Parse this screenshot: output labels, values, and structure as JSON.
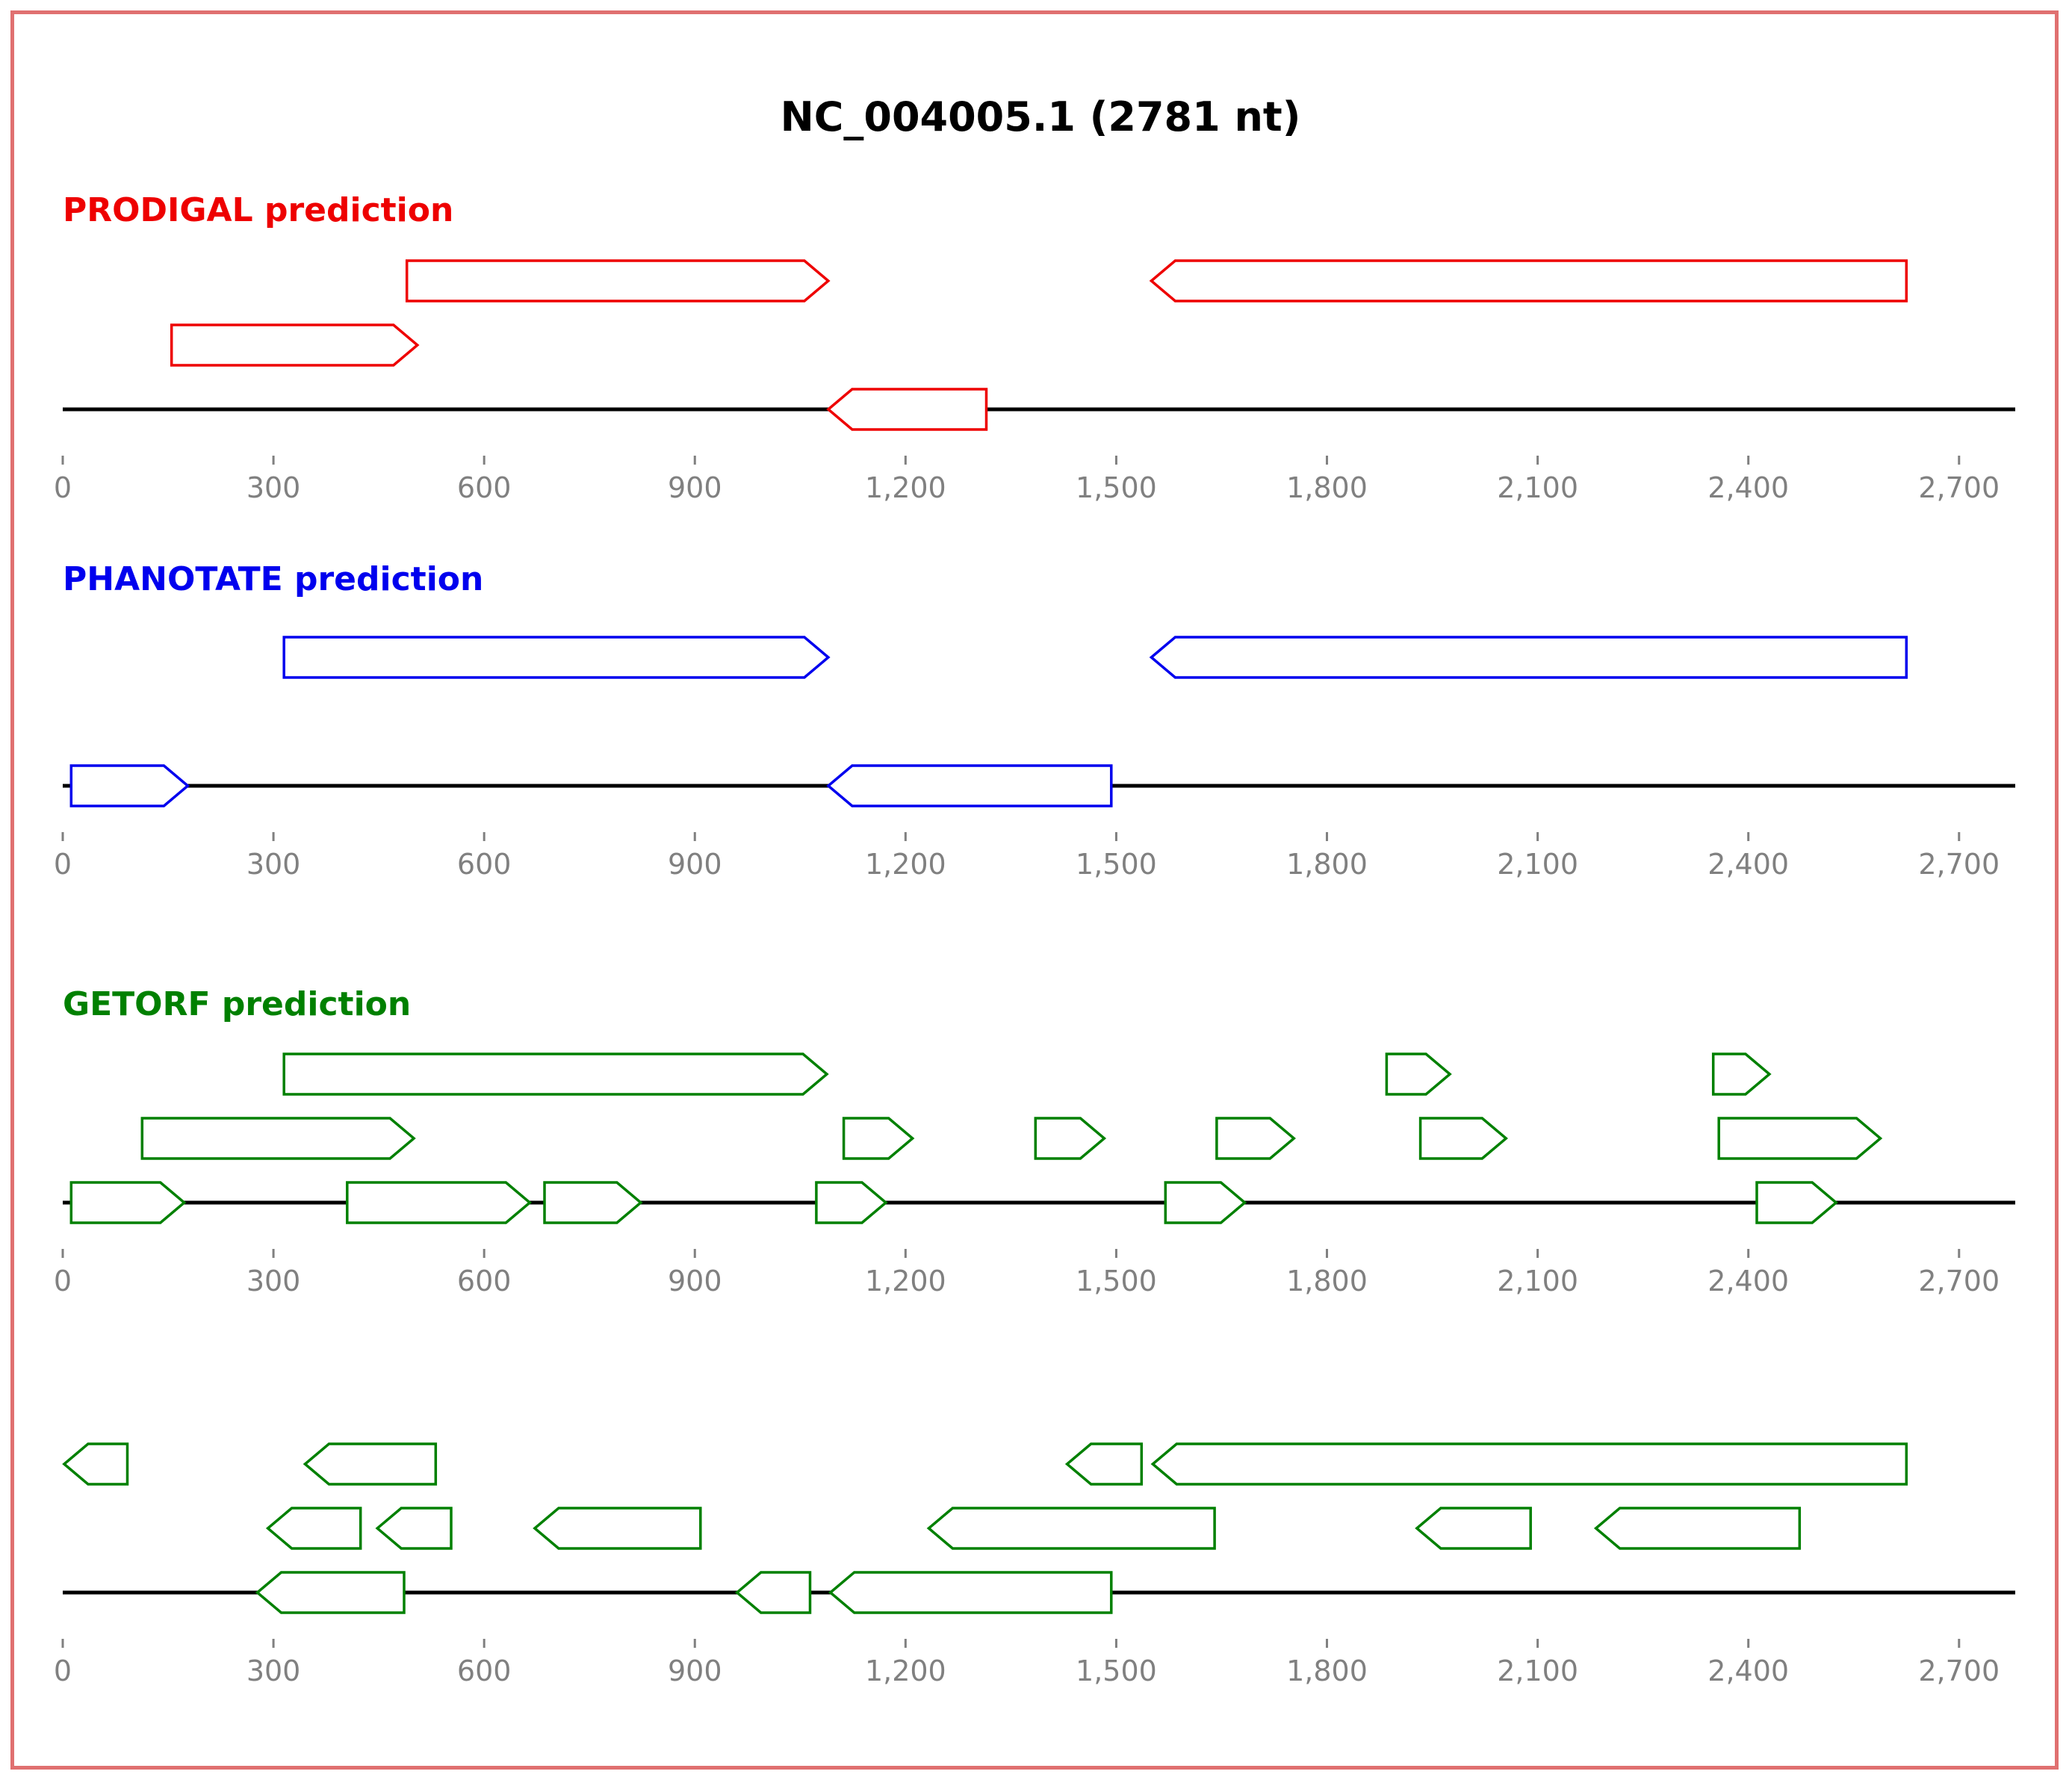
{
  "title": "NC_004005.1 (2781 nt)",
  "axis": {
    "min": 0,
    "max": 2781,
    "ticks": [
      0,
      300,
      600,
      900,
      1200,
      1500,
      1800,
      2100,
      2400,
      2700
    ],
    "tick_labels": [
      "0",
      "300",
      "600",
      "900",
      "1,200",
      "1,500",
      "1,800",
      "2,100",
      "2,400",
      "2,700"
    ]
  },
  "tracks": [
    {
      "id": "prodigal",
      "label": "PRODIGAL prediction",
      "color": "#ee0000",
      "genes": [
        {
          "start": 490,
          "end": 1090,
          "strand": 1,
          "level": 2
        },
        {
          "start": 1550,
          "end": 2625,
          "strand": -1,
          "level": 2
        },
        {
          "start": 155,
          "end": 505,
          "strand": 1,
          "level": 1
        },
        {
          "start": 1090,
          "end": 1315,
          "strand": -1,
          "level": 0
        }
      ]
    },
    {
      "id": "phanotate",
      "label": "PHANOTATE prediction",
      "color": "#0000ee",
      "genes": [
        {
          "start": 315,
          "end": 1090,
          "strand": 1,
          "level": 2
        },
        {
          "start": 1550,
          "end": 2625,
          "strand": -1,
          "level": 2
        },
        {
          "start": 12,
          "end": 178,
          "strand": 1,
          "level": 0
        },
        {
          "start": 1090,
          "end": 1493,
          "strand": -1,
          "level": 0
        }
      ]
    },
    {
      "id": "getorf-forward",
      "label": "GETORF prediction",
      "color": "#008000",
      "genes": [
        {
          "start": 315,
          "end": 1088,
          "strand": 1,
          "level": 2
        },
        {
          "start": 1885,
          "end": 1975,
          "strand": 1,
          "level": 2
        },
        {
          "start": 2350,
          "end": 2430,
          "strand": 1,
          "level": 2
        },
        {
          "start": 113,
          "end": 500,
          "strand": 1,
          "level": 1
        },
        {
          "start": 1112,
          "end": 1210,
          "strand": 1,
          "level": 1
        },
        {
          "start": 1385,
          "end": 1483,
          "strand": 1,
          "level": 1
        },
        {
          "start": 1643,
          "end": 1753,
          "strand": 1,
          "level": 1
        },
        {
          "start": 1933,
          "end": 2055,
          "strand": 1,
          "level": 1
        },
        {
          "start": 2358,
          "end": 2588,
          "strand": 1,
          "level": 1
        },
        {
          "start": 12,
          "end": 173,
          "strand": 1,
          "level": 0
        },
        {
          "start": 405,
          "end": 665,
          "strand": 1,
          "level": 0
        },
        {
          "start": 686,
          "end": 823,
          "strand": 1,
          "level": 0
        },
        {
          "start": 1073,
          "end": 1172,
          "strand": 1,
          "level": 0
        },
        {
          "start": 1570,
          "end": 1683,
          "strand": 1,
          "level": 0
        },
        {
          "start": 2412,
          "end": 2525,
          "strand": 1,
          "level": 0
        }
      ]
    },
    {
      "id": "getorf-reverse",
      "label": "",
      "color": "#008000",
      "genes": [
        {
          "start": 2,
          "end": 92,
          "strand": -1,
          "level": 2
        },
        {
          "start": 345,
          "end": 531,
          "strand": -1,
          "level": 2
        },
        {
          "start": 1430,
          "end": 1536,
          "strand": -1,
          "level": 2
        },
        {
          "start": 1552,
          "end": 2625,
          "strand": -1,
          "level": 2
        },
        {
          "start": 292,
          "end": 424,
          "strand": -1,
          "level": 1
        },
        {
          "start": 448,
          "end": 553,
          "strand": -1,
          "level": 1
        },
        {
          "start": 672,
          "end": 908,
          "strand": -1,
          "level": 1
        },
        {
          "start": 1233,
          "end": 1640,
          "strand": -1,
          "level": 1
        },
        {
          "start": 1928,
          "end": 2090,
          "strand": -1,
          "level": 1
        },
        {
          "start": 2183,
          "end": 2473,
          "strand": -1,
          "level": 1
        },
        {
          "start": 277,
          "end": 486,
          "strand": -1,
          "level": 0
        },
        {
          "start": 960,
          "end": 1064,
          "strand": -1,
          "level": 0
        },
        {
          "start": 1093,
          "end": 1493,
          "strand": -1,
          "level": 0
        }
      ]
    }
  ]
}
